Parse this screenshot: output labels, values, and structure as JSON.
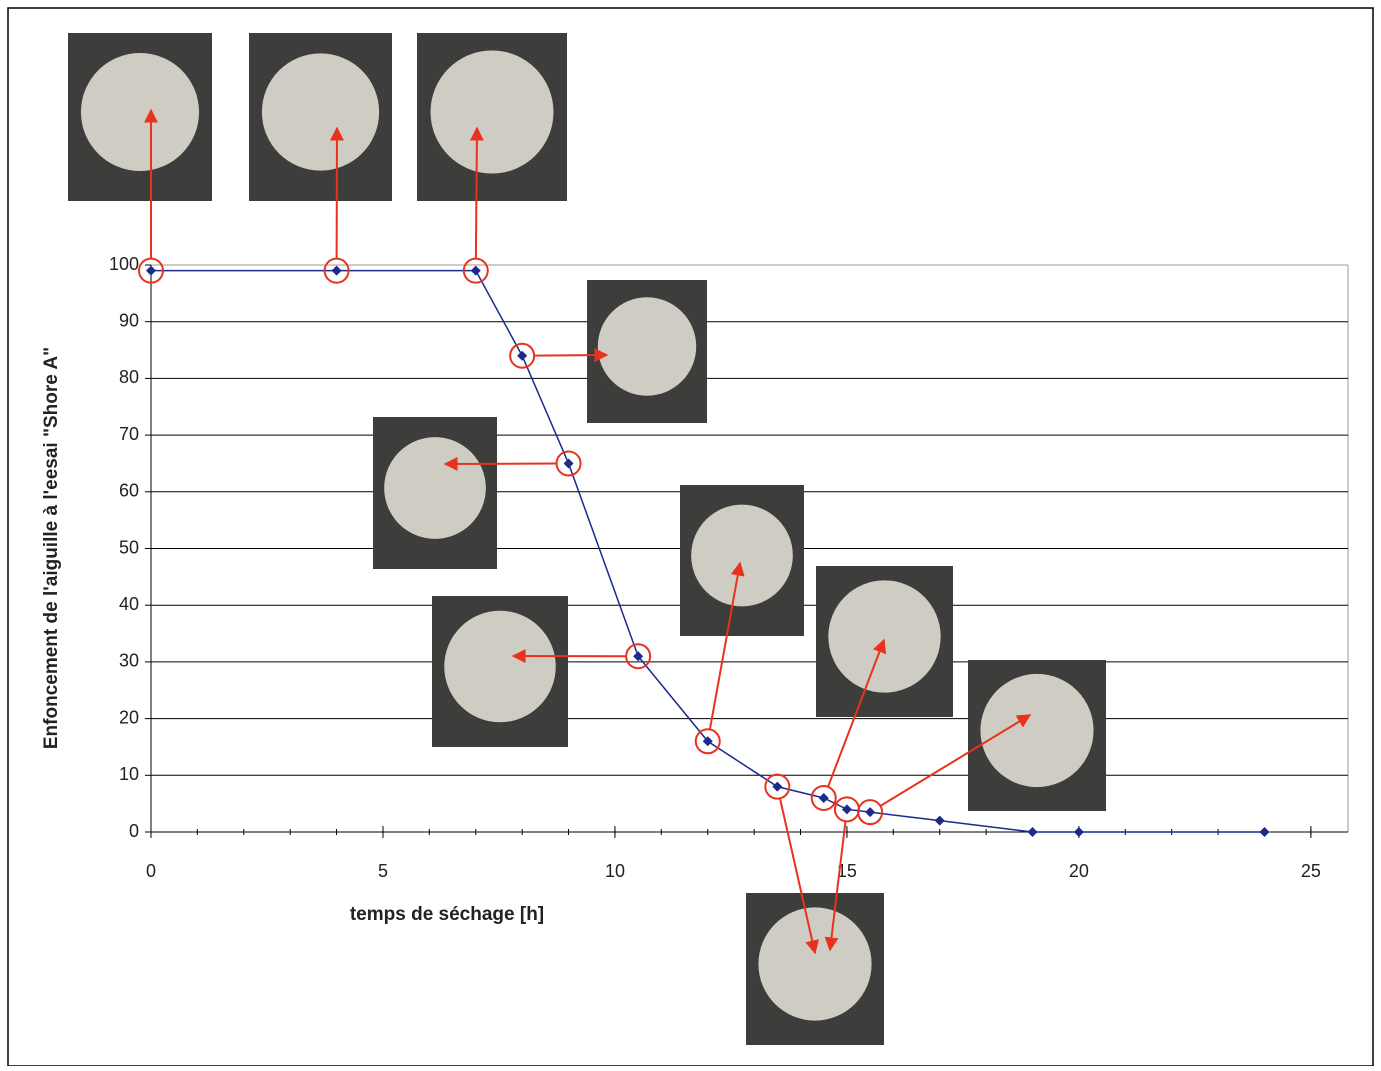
{
  "chart_data": {
    "type": "line",
    "x_label": "temps de séchage [h]",
    "y_label": "Enfoncement de l'aiguille à l'eesai \"Shore A\"",
    "x": [
      0,
      4,
      7,
      8,
      9,
      10.5,
      12,
      13.5,
      14.5,
      15,
      15.5,
      17,
      19,
      20,
      24
    ],
    "series": [
      {
        "color": "#1c2a8c",
        "values": [
          99,
          99,
          99,
          84,
          65,
          31,
          16,
          8,
          6,
          4,
          3.5,
          2,
          0,
          0,
          0
        ]
      }
    ],
    "xlim": [
      0,
      25.8
    ],
    "xticks": [
      0,
      5,
      10,
      15,
      20,
      25
    ],
    "ylim": [
      0,
      100
    ],
    "yticks": [
      0,
      10,
      20,
      30,
      40,
      50,
      60,
      70,
      80,
      90,
      100
    ],
    "grid": true
  }
}
